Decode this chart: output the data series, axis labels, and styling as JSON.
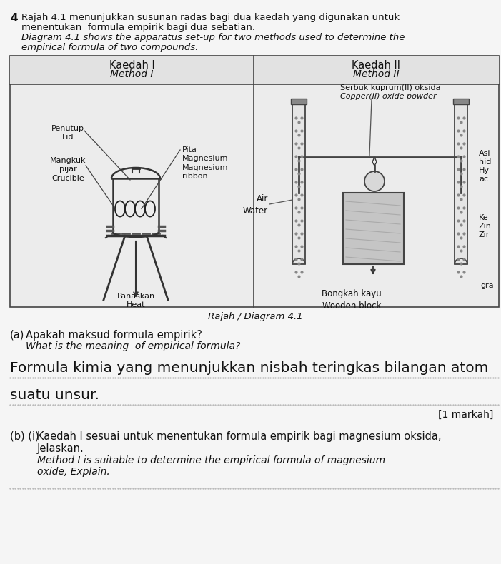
{
  "page_bg": "#f5f5f5",
  "cell_bg": "#ececec",
  "question_number": "4",
  "intro_line1": "Rajah 4.1 menunjukkan susunan radas bagi dua kaedah yang digunakan untuk",
  "intro_line2": "menentukan  formula empirik bagi dua sebatian.",
  "intro_line3": "Diagram 4.1 shows the apparatus set-up for two methods used to determine the",
  "intro_line4": "empirical formula of two compounds.",
  "hdr_left1": "Kaedah I",
  "hdr_left2": "Method I",
  "hdr_right1": "Kaedah II",
  "hdr_right2": "Method II",
  "lbl_penutup": "Penutup\nLid",
  "lbl_mangkuk": "Mangkuk\npijar\nCrucible",
  "lbl_pita": "Pita\nMagnesium\nMagnesium\nribbon",
  "lbl_panaskan": "Panaskan\nHeat",
  "lbl_serbuk1": "Serbuk kuprum(II) oksida",
  "lbl_serbuk2": "Copper(II) oxide powder",
  "lbl_air": "Air\nWater",
  "lbl_bongkah": "Bongkah kayu\nWooden block",
  "lbl_asi": "Asi",
  "lbl_hid": "hid",
  "lbl_hy": "Hy",
  "lbl_ac": "ac",
  "lbl_ke": "Ke",
  "lbl_zin": "Zin",
  "lbl_zir": "Zir",
  "lbl_gra": "gra",
  "diagram_caption": "Rajah / Diagram 4.1",
  "qa_label": "(a)",
  "qa_q1": "Apakah maksud formula empirik?",
  "qa_q2": "What is the meaning  of empirical formula?",
  "ans_line1": "Formula kimia yang menunjukkan nisbah teringkas bilangan atom",
  "ans_line2": "suatu unsur.",
  "markah": "[1 markah]",
  "qb_label": "(b) (i)",
  "qb_q1": "Kaedah I sesuai untuk menentukan formula empirik bagi magnesium oksida,",
  "qb_q2": "Jelaskan.",
  "qb_q3": "Method I is suitable to determine the empirical formula of magnesium",
  "qb_q4": "oxide, Explain."
}
